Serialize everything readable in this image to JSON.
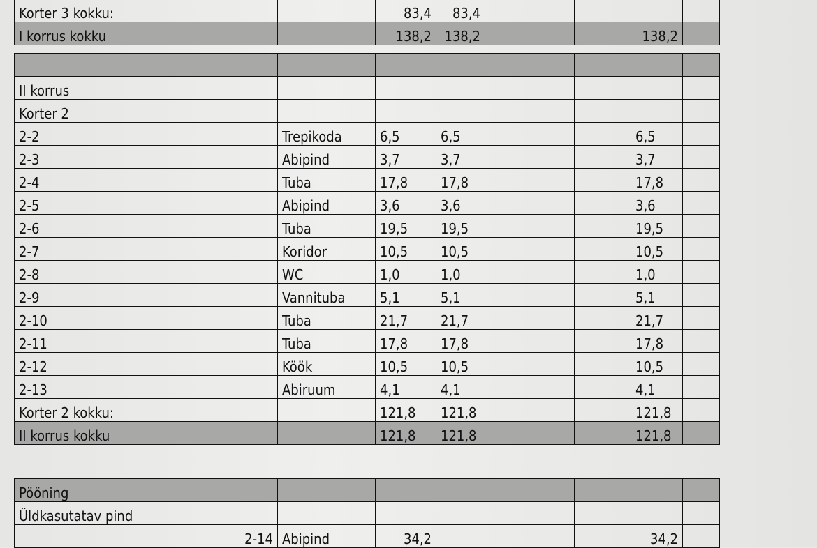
{
  "floor1_end": {
    "korter3_total": {
      "label": "Korter 3 kokku:",
      "a": "83,4",
      "b": "83,4"
    },
    "floor_total": {
      "label": "I korrus kokku",
      "a": "138,2",
      "b": "138,2",
      "total": "138,2"
    }
  },
  "floor2": {
    "title": "II korrus",
    "apartment": "Korter  2",
    "rows": [
      {
        "no": "2-2",
        "name": "Trepikoda",
        "a": "6,5",
        "b": "6,5",
        "total": "6,5"
      },
      {
        "no": "2-3",
        "name": "Abipind",
        "a": "3,7",
        "b": "3,7",
        "total": "3,7"
      },
      {
        "no": "2-4",
        "name": "Tuba",
        "a": "17,8",
        "b": "17,8",
        "total": "17,8"
      },
      {
        "no": "2-5",
        "name": "Abipind",
        "a": "3,6",
        "b": "3,6",
        "total": "3,6"
      },
      {
        "no": "2-6",
        "name": "Tuba",
        "a": "19,5",
        "b": "19,5",
        "total": "19,5"
      },
      {
        "no": "2-7",
        "name": "Koridor",
        "a": "10,5",
        "b": "10,5",
        "total": "10,5"
      },
      {
        "no": "2-8",
        "name": "WC",
        "a": "1,0",
        "b": "1,0",
        "total": "1,0"
      },
      {
        "no": "2-9",
        "name": "Vannituba",
        "a": "5,1",
        "b": "5,1",
        "total": "5,1"
      },
      {
        "no": "2-10",
        "name": "Tuba",
        "a": "21,7",
        "b": "21,7",
        "total": "21,7"
      },
      {
        "no": "2-11",
        "name": "Tuba",
        "a": "17,8",
        "b": "17,8",
        "total": "17,8"
      },
      {
        "no": "2-12",
        "name": "Köök",
        "a": "10,5",
        "b": "10,5",
        "total": "10,5"
      },
      {
        "no": "2-13",
        "name": "Abiruum",
        "a": "4,1",
        "b": "4,1",
        "total": "4,1"
      }
    ],
    "apartment_total": {
      "label": "Korter 2 kokku:",
      "a": "121,8",
      "b": "121,8",
      "total": "121,8"
    },
    "floor_total": {
      "label": "II korrus kokku",
      "a": "121,8",
      "b": "121,8",
      "total": "121,8"
    }
  },
  "attic": {
    "title": "Pööning",
    "section": "Üldkasutatav pind",
    "rows": [
      {
        "no": "2-14",
        "name": "Abipind",
        "a": "34,2",
        "total": "34,2"
      }
    ]
  }
}
